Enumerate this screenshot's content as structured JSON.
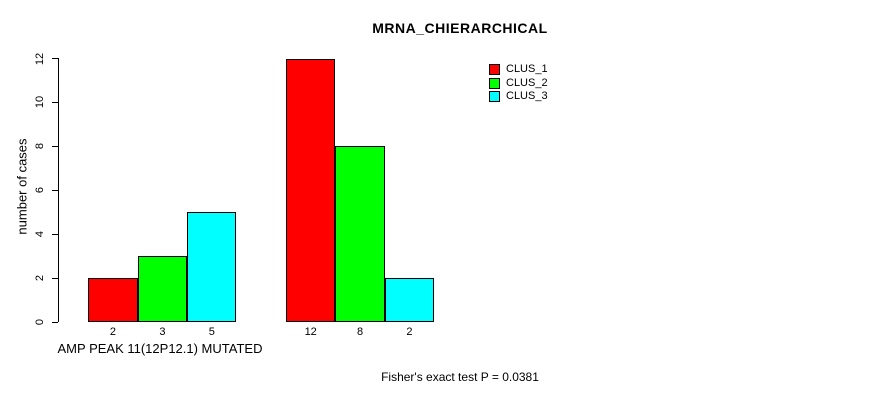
{
  "title": "MRNA_CHIERARCHICAL",
  "axes": {
    "ylabel": "number of cases",
    "xlabel": "AMP PEAK 11(12P12.1) MUTATED"
  },
  "footer": "Fisher's exact test P = 0.0381",
  "legend": {
    "items": [
      {
        "label": "CLUS_1",
        "color": "#ff0000"
      },
      {
        "label": "CLUS_2",
        "color": "#00ff00"
      },
      {
        "label": "CLUS_3",
        "color": "#00ffff"
      }
    ]
  },
  "chart_data": {
    "type": "bar",
    "title": "MRNA_CHIERARCHICAL",
    "ylabel": "number of cases",
    "xlabel": "AMP PEAK 11(12P12.1) MUTATED",
    "annotation": "Fisher's exact test P = 0.0381",
    "ylim": [
      0,
      12
    ],
    "yticks": [
      0,
      2,
      4,
      6,
      8,
      10,
      12
    ],
    "grid": false,
    "legend_position": "top-right",
    "series": [
      {
        "name": "CLUS_1",
        "color": "#ff0000",
        "values": [
          2,
          12
        ]
      },
      {
        "name": "CLUS_2",
        "color": "#00ff00",
        "values": [
          3,
          8
        ]
      },
      {
        "name": "CLUS_3",
        "color": "#00ffff",
        "values": [
          5,
          2
        ]
      }
    ],
    "bar_labels": [
      [
        "2",
        "3",
        "5"
      ],
      [
        "12",
        "8",
        "2"
      ]
    ]
  }
}
